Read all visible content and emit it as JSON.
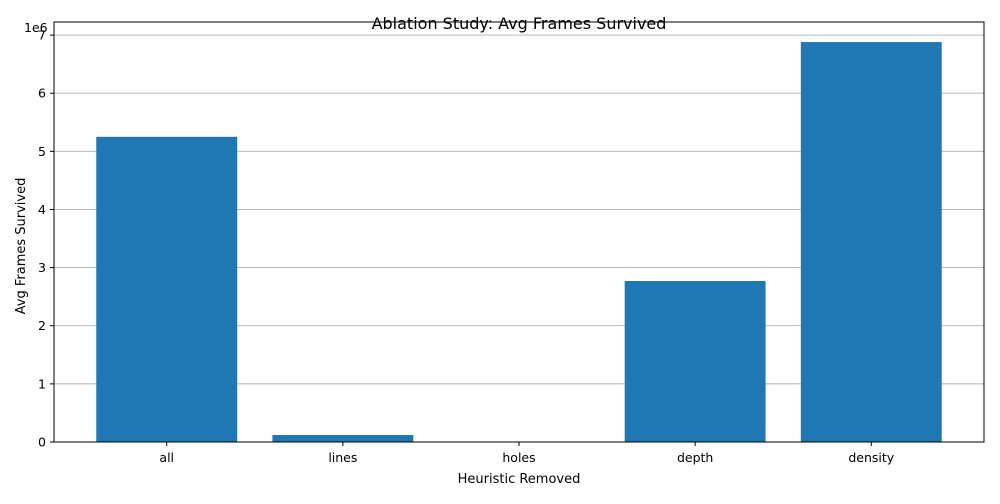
{
  "chart_data": {
    "type": "bar",
    "title": "Ablation Study: Avg Frames Survived",
    "xlabel": "Heuristic Removed",
    "ylabel": "Avg Frames Survived",
    "categories": [
      "all",
      "lines",
      "holes",
      "depth",
      "density"
    ],
    "values": [
      5250000,
      120000,
      0,
      2770000,
      6880000
    ],
    "ylim": [
      0,
      7225000
    ],
    "yticks": [
      0,
      1000000,
      2000000,
      3000000,
      4000000,
      5000000,
      6000000,
      7000000
    ],
    "ytick_labels": [
      "0",
      "1",
      "2",
      "3",
      "4",
      "5",
      "6",
      "7"
    ],
    "y_offset_text": "1e6",
    "grid": {
      "x": false,
      "y": true
    },
    "bar_color": "#1f77b4",
    "grid_color": "#b0b0b0"
  }
}
